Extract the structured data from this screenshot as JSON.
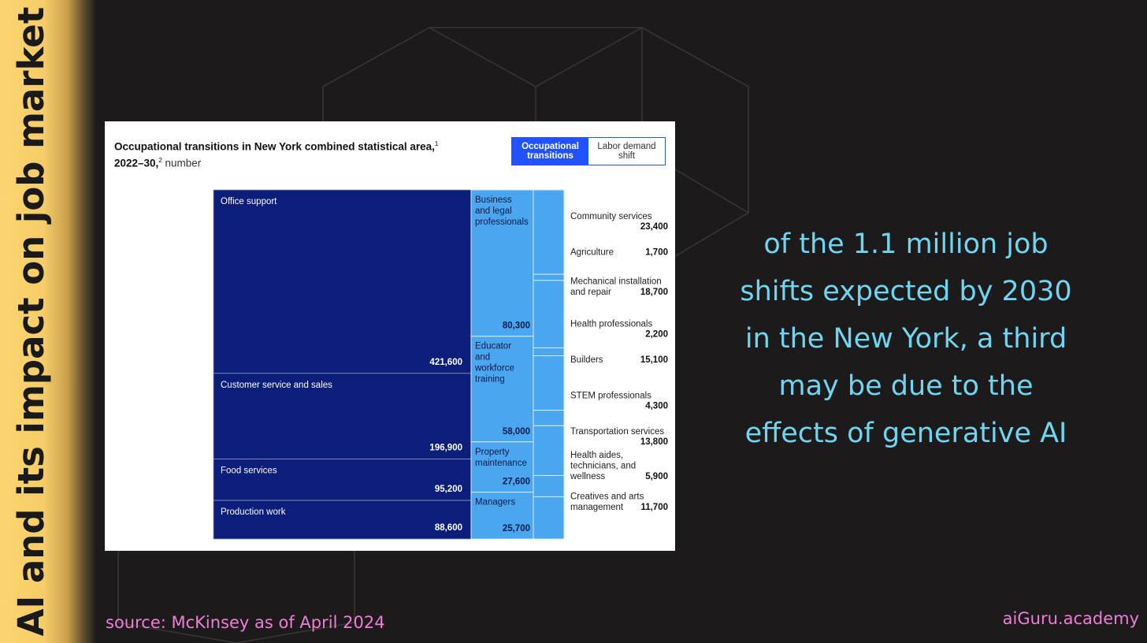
{
  "sidebar": {
    "title": "AI and its impact on job market"
  },
  "toggle": {
    "active_label": "Occupational transitions",
    "inactive_label": "Labor demand shift"
  },
  "colors": {
    "dark_navy": "#0b1f7a",
    "light_blue": "#4aa6ef",
    "toggle_active": "#2251ff",
    "cyan_text": "#6fd6f1",
    "pink_text": "#ee7ed6",
    "sidebar_yellow": "#fbd570"
  },
  "chart_data": {
    "type": "treemap",
    "title_main": "Occupational transitions in New York combined statistical area,",
    "title_sup1": "1",
    "title_range": " 2022–30,",
    "title_sup2": "2",
    "title_unit": " number",
    "from_occupations": [
      {
        "name": "Office support",
        "value": "421,600",
        "n": 421600
      },
      {
        "name": "Customer service and sales",
        "value": "196,900",
        "n": 196900
      },
      {
        "name": "Food services",
        "value": "95,200",
        "n": 95200
      },
      {
        "name": "Production work",
        "value": "88,600",
        "n": 88600
      }
    ],
    "to_occupations": [
      {
        "name": "Business and legal professionals",
        "lines": [
          "Business",
          "and legal",
          "professionals"
        ],
        "value": "80,300",
        "n": 80300
      },
      {
        "name": "Educator and workforce training",
        "lines": [
          "Educator",
          "and",
          "workforce",
          "training"
        ],
        "value": "58,000",
        "n": 58000
      },
      {
        "name": "Property maintenance",
        "lines": [
          "Property",
          "maintenance"
        ],
        "value": "27,600",
        "n": 27600
      },
      {
        "name": "Managers",
        "lines": [
          "Managers"
        ],
        "value": "25,700",
        "n": 25700
      }
    ],
    "other_occupations": [
      {
        "name": "Community services",
        "lines": [
          "Community services"
        ],
        "value": "23,400",
        "n": 23400
      },
      {
        "name": "Agriculture",
        "lines": [
          "Agriculture"
        ],
        "value": "1,700",
        "n": 1700
      },
      {
        "name": "Mechanical installation and repair",
        "lines": [
          "Mechanical installation",
          "and repair"
        ],
        "value": "18,700",
        "n": 18700
      },
      {
        "name": "Health professionals",
        "lines": [
          "Health professionals"
        ],
        "value": "2,200",
        "n": 2200
      },
      {
        "name": "Builders",
        "lines": [
          "Builders"
        ],
        "value": "15,100",
        "n": 15100
      },
      {
        "name": "STEM professionals",
        "lines": [
          "STEM professionals"
        ],
        "value": "4,300",
        "n": 4300
      },
      {
        "name": "Transportation services",
        "lines": [
          "Transportation services"
        ],
        "value": "13,800",
        "n": 13800
      },
      {
        "name": "Health aides, technicians, and wellness",
        "lines": [
          "Health aides,",
          "technicians, and",
          "wellness"
        ],
        "value": "5,900",
        "n": 5900
      },
      {
        "name": "Creatives and arts management",
        "lines": [
          "Creatives and arts",
          "management"
        ],
        "value": "11,700",
        "n": 11700
      }
    ]
  },
  "main_text": {
    "lines": [
      "of the 1.1 million job",
      "shifts expected by 2030",
      "in the New York, a third",
      "may be due to the",
      "effects of generative AI"
    ]
  },
  "footer": {
    "source": "source: McKinsey as of April 2024",
    "brand": "aiGuru.academy"
  }
}
